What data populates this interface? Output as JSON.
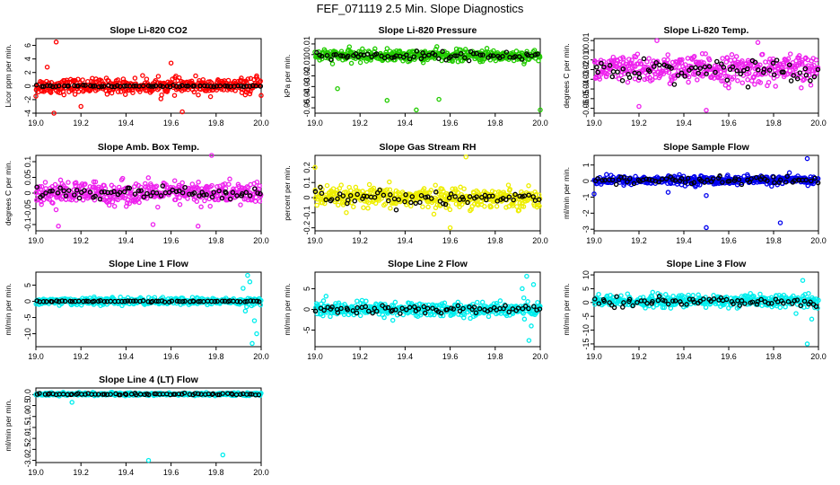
{
  "page": {
    "title": "FEF_071119  2.5 Min. Slope Diagnostics"
  },
  "chart_data": [
    {
      "type": "scatter",
      "title": "Slope Li-820 CO2",
      "ylabel": "Licor ppm per min.",
      "xlim": [
        19.0,
        20.0
      ],
      "ylim": [
        -4,
        7
      ],
      "xticks": [
        "19.0",
        "19.2",
        "19.4",
        "19.6",
        "19.8",
        "20.0"
      ],
      "yticks": [
        -4,
        -2,
        0,
        2,
        4,
        6
      ],
      "series": [
        {
          "name": "individual",
          "color": "#ff0000",
          "center": 0,
          "spread": 0.9,
          "outliers": [
            [
              19.09,
              6.5
            ],
            [
              19.0,
              -1.5
            ],
            [
              19.05,
              2.8
            ],
            [
              19.6,
              3.4
            ],
            [
              19.65,
              -3.8
            ],
            [
              19.08,
              -4.0
            ],
            [
              19.98,
              1.5
            ],
            [
              19.2,
              -3.0
            ]
          ]
        },
        {
          "name": "mean",
          "color": "#000000",
          "center": 0,
          "spread": 0.1,
          "outliers": []
        }
      ]
    },
    {
      "type": "scatter",
      "title": "Slope Li-820 Pressure",
      "ylabel": "kPa per min.",
      "xlim": [
        19.0,
        20.0
      ],
      "ylim": [
        -0.055,
        0.015
      ],
      "xticks": [
        "19.0",
        "19.2",
        "19.4",
        "19.6",
        "19.8",
        "20.0"
      ],
      "yticks": [
        -0.05,
        -0.04,
        -0.03,
        -0.02,
        -0.01,
        0,
        0.01
      ],
      "series": [
        {
          "name": "individual",
          "color": "#22cc00",
          "center": -0.001,
          "spread": 0.0045,
          "outliers": [
            [
              19.32,
              -0.043
            ],
            [
              19.55,
              -0.042
            ],
            [
              20.0,
              -0.052
            ],
            [
              19.45,
              -0.052
            ],
            [
              19.1,
              -0.032
            ]
          ]
        },
        {
          "name": "mean",
          "color": "#000000",
          "center": -0.001,
          "spread": 0.003,
          "outliers": []
        }
      ]
    },
    {
      "type": "scatter",
      "title": "Slope Li-820 Temp.",
      "ylabel": "degrees C per min.",
      "xlim": [
        19.0,
        20.0
      ],
      "ylim": [
        -0.065,
        0.012
      ],
      "xticks": [
        "19.0",
        "19.2",
        "19.4",
        "19.6",
        "19.8",
        "20.0"
      ],
      "yticks": [
        -0.06,
        -0.05,
        -0.04,
        -0.03,
        -0.02,
        -0.01,
        0,
        0.01
      ],
      "series": [
        {
          "name": "individual",
          "color": "#ee22ee",
          "center": -0.02,
          "spread": 0.012,
          "outliers": [
            [
              19.28,
              0.01
            ],
            [
              19.5,
              -0.062
            ],
            [
              19.2,
              -0.058
            ],
            [
              19.73,
              0.008
            ]
          ]
        },
        {
          "name": "mean",
          "color": "#000000",
          "center": -0.02,
          "spread": 0.009,
          "outliers": []
        }
      ]
    },
    {
      "type": "scatter",
      "title": "Slope Amb. Box Temp.",
      "ylabel": "degrees C per min.",
      "xlim": [
        19.0,
        20.0
      ],
      "ylim": [
        -0.12,
        0.12
      ],
      "xticks": [
        "19.0",
        "19.2",
        "19.4",
        "19.6",
        "19.8",
        "20.0"
      ],
      "yticks": [
        -0.1,
        -0.05,
        0,
        0.05,
        0.1
      ],
      "series": [
        {
          "name": "individual",
          "color": "#ee22ee",
          "center": 0,
          "spread": 0.03,
          "outliers": [
            [
              19.78,
              0.12
            ],
            [
              19.1,
              -0.105
            ],
            [
              19.52,
              -0.1
            ],
            [
              19.72,
              -0.105
            ]
          ]
        },
        {
          "name": "mean",
          "color": "#000000",
          "center": 0,
          "spread": 0.018,
          "outliers": []
        }
      ]
    },
    {
      "type": "scatter",
      "title": "Slope Gas Stream RH",
      "ylabel": "percent per min.",
      "xlim": [
        19.0,
        20.0
      ],
      "ylim": [
        -0.22,
        0.28
      ],
      "xticks": [
        "19.0",
        "19.2",
        "19.4",
        "19.6",
        "19.8",
        "20.0"
      ],
      "yticks": [
        -0.2,
        -0.1,
        0,
        0.1,
        0.2
      ],
      "series": [
        {
          "name": "individual",
          "color": "#eeee00",
          "center": 0,
          "spread": 0.055,
          "outliers": [
            [
              19.67,
              0.27
            ],
            [
              19.6,
              -0.2
            ],
            [
              19.0,
              0.2
            ]
          ]
        },
        {
          "name": "mean",
          "color": "#000000",
          "center": 0,
          "spread": 0.04,
          "outliers": []
        }
      ]
    },
    {
      "type": "scatter",
      "title": "Slope Sample Flow",
      "ylabel": "ml/min per min.",
      "xlim": [
        19.0,
        20.0
      ],
      "ylim": [
        -3.1,
        1.6
      ],
      "xticks": [
        "19.0",
        "19.2",
        "19.4",
        "19.6",
        "19.8",
        "20.0"
      ],
      "yticks": [
        -3,
        -2,
        -1,
        0,
        1
      ],
      "series": [
        {
          "name": "individual",
          "color": "#0000ee",
          "center": 0.05,
          "spread": 0.22,
          "outliers": [
            [
              19.5,
              -2.9
            ],
            [
              19.83,
              -2.6
            ],
            [
              19.0,
              -0.8
            ],
            [
              19.95,
              1.4
            ],
            [
              19.33,
              -0.7
            ],
            [
              19.5,
              -0.9
            ]
          ]
        },
        {
          "name": "mean",
          "color": "#000000",
          "center": 0.05,
          "spread": 0.2,
          "outliers": []
        }
      ]
    },
    {
      "type": "scatter",
      "title": "Slope Line 1 Flow",
      "ylabel": "ml/min per min.",
      "xlim": [
        19.0,
        20.0
      ],
      "ylim": [
        -14,
        9
      ],
      "xticks": [
        "19.0",
        "19.2",
        "19.4",
        "19.6",
        "19.8",
        "20.0"
      ],
      "yticks": [
        -10,
        -5,
        0,
        5
      ],
      "series": [
        {
          "name": "individual",
          "color": "#00eeee",
          "center": 0,
          "spread": 0.9,
          "outliers": [
            [
              19.94,
              8
            ],
            [
              19.95,
              6
            ],
            [
              19.97,
              -6
            ],
            [
              19.98,
              -10
            ],
            [
              19.96,
              -13
            ],
            [
              19.92,
              4
            ],
            [
              19.93,
              -3
            ]
          ]
        },
        {
          "name": "mean",
          "color": "#000000",
          "center": 0,
          "spread": 0.15,
          "outliers": []
        }
      ]
    },
    {
      "type": "scatter",
      "title": "Slope Line 2 Flow",
      "ylabel": "ml/min per min.",
      "xlim": [
        19.0,
        20.0
      ],
      "ylim": [
        -9,
        9
      ],
      "xticks": [
        "19.0",
        "19.2",
        "19.4",
        "19.6",
        "19.8",
        "20.0"
      ],
      "yticks": [
        -5,
        0,
        5
      ],
      "series": [
        {
          "name": "individual",
          "color": "#00eeee",
          "center": 0,
          "spread": 1.4,
          "outliers": [
            [
              19.94,
              8
            ],
            [
              19.95,
              -7.5
            ],
            [
              19.97,
              6
            ],
            [
              19.96,
              -4
            ],
            [
              19.92,
              5
            ]
          ]
        },
        {
          "name": "mean",
          "color": "#000000",
          "center": 0,
          "spread": 1.0,
          "outliers": []
        }
      ]
    },
    {
      "type": "scatter",
      "title": "Slope Line 3 Flow",
      "ylabel": "ml/min per min.",
      "xlim": [
        19.0,
        20.0
      ],
      "ylim": [
        -16,
        11
      ],
      "xticks": [
        "19.0",
        "19.2",
        "19.4",
        "19.6",
        "19.8",
        "20.0"
      ],
      "yticks": [
        -15,
        -10,
        -5,
        0,
        5,
        10
      ],
      "series": [
        {
          "name": "individual",
          "color": "#00eeee",
          "center": 0.5,
          "spread": 1.8,
          "outliers": [
            [
              19.95,
              -15
            ],
            [
              19.93,
              8
            ],
            [
              19.97,
              -6
            ],
            [
              19.9,
              -4
            ]
          ]
        },
        {
          "name": "mean",
          "color": "#000000",
          "center": 0.3,
          "spread": 1.3,
          "outliers": []
        }
      ]
    },
    {
      "type": "scatter",
      "title": "Slope Line 4 (LT) Flow",
      "ylabel": "ml/min per min.",
      "xlim": [
        19.0,
        20.0
      ],
      "ylim": [
        -3.1,
        0.3
      ],
      "xticks": [
        "19.0",
        "19.2",
        "19.4",
        "19.6",
        "19.8",
        "20.0"
      ],
      "yticks": [
        -3.0,
        -2.5,
        -2.0,
        -1.5,
        -1.0,
        -0.5,
        0.0
      ],
      "series": [
        {
          "name": "individual",
          "color": "#00eeee",
          "center": 0.02,
          "spread": 0.05,
          "outliers": [
            [
              19.5,
              -3.0
            ],
            [
              19.83,
              -2.75
            ],
            [
              19.16,
              -0.35
            ]
          ]
        },
        {
          "name": "mean",
          "color": "#000000",
          "center": 0.02,
          "spread": 0.03,
          "outliers": []
        }
      ]
    }
  ]
}
